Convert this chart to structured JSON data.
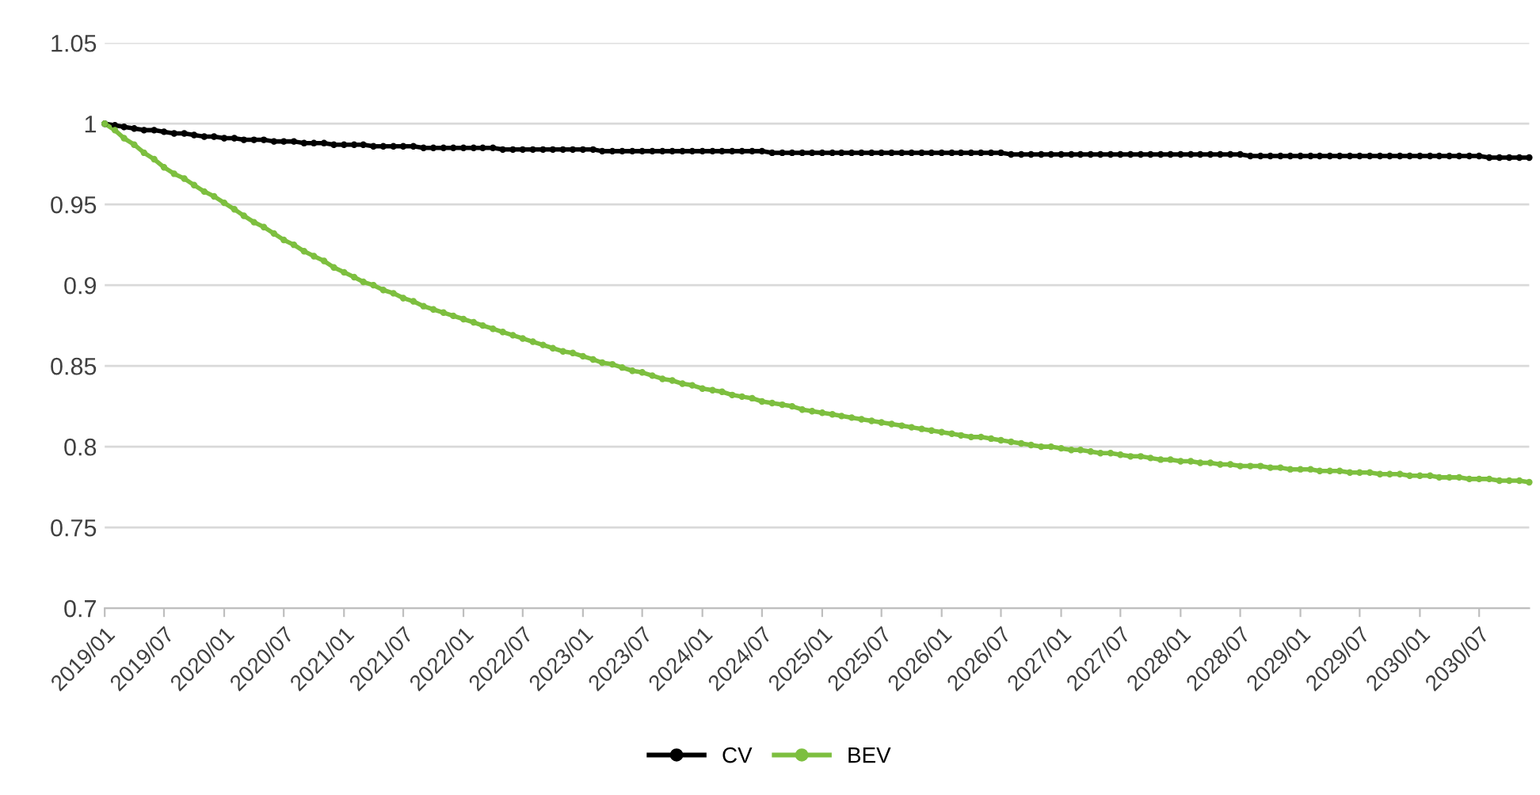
{
  "chart_data": {
    "type": "line",
    "x": [
      "2019-01",
      "2019-02",
      "2019-03",
      "2019-04",
      "2019-05",
      "2019-06",
      "2019-07",
      "2019-08",
      "2019-09",
      "2019-10",
      "2019-11",
      "2019-12",
      "2020-01",
      "2020-02",
      "2020-03",
      "2020-04",
      "2020-05",
      "2020-06",
      "2020-07",
      "2020-08",
      "2020-09",
      "2020-10",
      "2020-11",
      "2020-12",
      "2021-01",
      "2021-02",
      "2021-03",
      "2021-04",
      "2021-05",
      "2021-06",
      "2021-07",
      "2021-08",
      "2021-09",
      "2021-10",
      "2021-11",
      "2021-12",
      "2022-01",
      "2022-02",
      "2022-03",
      "2022-04",
      "2022-05",
      "2022-06",
      "2022-07",
      "2022-08",
      "2022-09",
      "2022-10",
      "2022-11",
      "2022-12",
      "2023-01",
      "2023-02",
      "2023-03",
      "2023-04",
      "2023-05",
      "2023-06",
      "2023-07",
      "2023-08",
      "2023-09",
      "2023-10",
      "2023-11",
      "2023-12",
      "2024-01",
      "2024-02",
      "2024-03",
      "2024-04",
      "2024-05",
      "2024-06",
      "2024-07",
      "2024-08",
      "2024-09",
      "2024-10",
      "2024-11",
      "2024-12",
      "2025-01",
      "2025-02",
      "2025-03",
      "2025-04",
      "2025-05",
      "2025-06",
      "2025-07",
      "2025-08",
      "2025-09",
      "2025-10",
      "2025-11",
      "2025-12",
      "2026-01",
      "2026-02",
      "2026-03",
      "2026-04",
      "2026-05",
      "2026-06",
      "2026-07",
      "2026-08",
      "2026-09",
      "2026-10",
      "2026-11",
      "2026-12",
      "2027-01",
      "2027-02",
      "2027-03",
      "2027-04",
      "2027-05",
      "2027-06",
      "2027-07",
      "2027-08",
      "2027-09",
      "2027-10",
      "2027-11",
      "2027-12",
      "2028-01",
      "2028-02",
      "2028-03",
      "2028-04",
      "2028-05",
      "2028-06",
      "2028-07",
      "2028-08",
      "2028-09",
      "2028-10",
      "2028-11",
      "2028-12",
      "2029-01",
      "2029-02",
      "2029-03",
      "2029-04",
      "2029-05",
      "2029-06",
      "2029-07",
      "2029-08",
      "2029-09",
      "2029-10",
      "2029-11",
      "2029-12",
      "2030-01",
      "2030-02",
      "2030-03",
      "2030-04",
      "2030-05",
      "2030-06",
      "2030-07",
      "2030-08",
      "2030-09",
      "2030-10",
      "2030-11",
      "2030-12"
    ],
    "xlim": [
      "2019-01",
      "2030-12"
    ],
    "xticks": [
      {
        "value": "2019-01",
        "label": "2019/01"
      },
      {
        "value": "2019-07",
        "label": "2019/07"
      },
      {
        "value": "2020-01",
        "label": "2020/01"
      },
      {
        "value": "2020-07",
        "label": "2020/07"
      },
      {
        "value": "2021-01",
        "label": "2021/01"
      },
      {
        "value": "2021-07",
        "label": "2021/07"
      },
      {
        "value": "2022-01",
        "label": "2022/01"
      },
      {
        "value": "2022-07",
        "label": "2022/07"
      },
      {
        "value": "2023-01",
        "label": "2023/01"
      },
      {
        "value": "2023-07",
        "label": "2023/07"
      },
      {
        "value": "2024-01",
        "label": "2024/01"
      },
      {
        "value": "2024-07",
        "label": "2024/07"
      },
      {
        "value": "2025-01",
        "label": "2025/01"
      },
      {
        "value": "2025-07",
        "label": "2025/07"
      },
      {
        "value": "2026-01",
        "label": "2026/01"
      },
      {
        "value": "2026-07",
        "label": "2026/07"
      },
      {
        "value": "2027-01",
        "label": "2027/01"
      },
      {
        "value": "2027-07",
        "label": "2027/07"
      },
      {
        "value": "2028-01",
        "label": "2028/01"
      },
      {
        "value": "2028-07",
        "label": "2028/07"
      },
      {
        "value": "2029-01",
        "label": "2029/01"
      },
      {
        "value": "2029-07",
        "label": "2029/07"
      },
      {
        "value": "2030-01",
        "label": "2030/01"
      },
      {
        "value": "2030-07",
        "label": "2030/07"
      }
    ],
    "series": [
      {
        "name": "CV",
        "color": "#000000",
        "values": [
          1.0,
          0.999,
          0.998,
          0.997,
          0.996,
          0.996,
          0.995,
          0.994,
          0.994,
          0.993,
          0.992,
          0.992,
          0.991,
          0.991,
          0.99,
          0.99,
          0.99,
          0.989,
          0.989,
          0.989,
          0.988,
          0.988,
          0.988,
          0.987,
          0.987,
          0.987,
          0.987,
          0.986,
          0.986,
          0.986,
          0.986,
          0.986,
          0.985,
          0.985,
          0.985,
          0.985,
          0.985,
          0.985,
          0.985,
          0.985,
          0.984,
          0.984,
          0.984,
          0.984,
          0.984,
          0.984,
          0.984,
          0.984,
          0.984,
          0.984,
          0.983,
          0.983,
          0.983,
          0.983,
          0.983,
          0.983,
          0.983,
          0.983,
          0.983,
          0.983,
          0.983,
          0.983,
          0.983,
          0.983,
          0.983,
          0.983,
          0.983,
          0.982,
          0.982,
          0.982,
          0.982,
          0.982,
          0.982,
          0.982,
          0.982,
          0.982,
          0.982,
          0.982,
          0.982,
          0.982,
          0.982,
          0.982,
          0.982,
          0.982,
          0.982,
          0.982,
          0.982,
          0.982,
          0.982,
          0.982,
          0.982,
          0.981,
          0.981,
          0.981,
          0.981,
          0.981,
          0.981,
          0.981,
          0.981,
          0.981,
          0.981,
          0.981,
          0.981,
          0.981,
          0.981,
          0.981,
          0.981,
          0.981,
          0.981,
          0.981,
          0.981,
          0.981,
          0.981,
          0.981,
          0.981,
          0.98,
          0.98,
          0.98,
          0.98,
          0.98,
          0.98,
          0.98,
          0.98,
          0.98,
          0.98,
          0.98,
          0.98,
          0.98,
          0.98,
          0.98,
          0.98,
          0.98,
          0.98,
          0.98,
          0.98,
          0.98,
          0.98,
          0.98,
          0.98,
          0.979,
          0.979,
          0.979,
          0.979,
          0.979
        ]
      },
      {
        "name": "BEV",
        "color": "#7dbf3f",
        "values": [
          1.0,
          0.996,
          0.991,
          0.987,
          0.982,
          0.978,
          0.973,
          0.969,
          0.966,
          0.962,
          0.958,
          0.955,
          0.951,
          0.947,
          0.943,
          0.939,
          0.936,
          0.932,
          0.928,
          0.925,
          0.921,
          0.918,
          0.915,
          0.911,
          0.908,
          0.905,
          0.902,
          0.9,
          0.897,
          0.895,
          0.892,
          0.89,
          0.887,
          0.885,
          0.883,
          0.881,
          0.879,
          0.877,
          0.875,
          0.873,
          0.871,
          0.869,
          0.867,
          0.865,
          0.863,
          0.861,
          0.859,
          0.858,
          0.856,
          0.854,
          0.852,
          0.851,
          0.849,
          0.847,
          0.846,
          0.844,
          0.842,
          0.841,
          0.839,
          0.838,
          0.836,
          0.835,
          0.834,
          0.832,
          0.831,
          0.83,
          0.828,
          0.827,
          0.826,
          0.825,
          0.823,
          0.822,
          0.821,
          0.82,
          0.819,
          0.818,
          0.817,
          0.816,
          0.815,
          0.814,
          0.813,
          0.812,
          0.811,
          0.81,
          0.809,
          0.808,
          0.807,
          0.806,
          0.806,
          0.805,
          0.804,
          0.803,
          0.802,
          0.801,
          0.8,
          0.8,
          0.799,
          0.798,
          0.798,
          0.797,
          0.796,
          0.796,
          0.795,
          0.794,
          0.794,
          0.793,
          0.792,
          0.792,
          0.791,
          0.791,
          0.79,
          0.79,
          0.789,
          0.789,
          0.788,
          0.788,
          0.788,
          0.787,
          0.787,
          0.786,
          0.786,
          0.786,
          0.785,
          0.785,
          0.785,
          0.784,
          0.784,
          0.784,
          0.783,
          0.783,
          0.783,
          0.782,
          0.782,
          0.782,
          0.781,
          0.781,
          0.781,
          0.78,
          0.78,
          0.78,
          0.779,
          0.779,
          0.779,
          0.778
        ]
      }
    ],
    "ylim": [
      0.7,
      1.05
    ],
    "yticks": [
      0.7,
      0.75,
      0.8,
      0.85,
      0.9,
      0.95,
      1,
      1.05
    ],
    "grid": "y",
    "legend": "bottom",
    "marker": "circle",
    "line_style": "solid"
  }
}
